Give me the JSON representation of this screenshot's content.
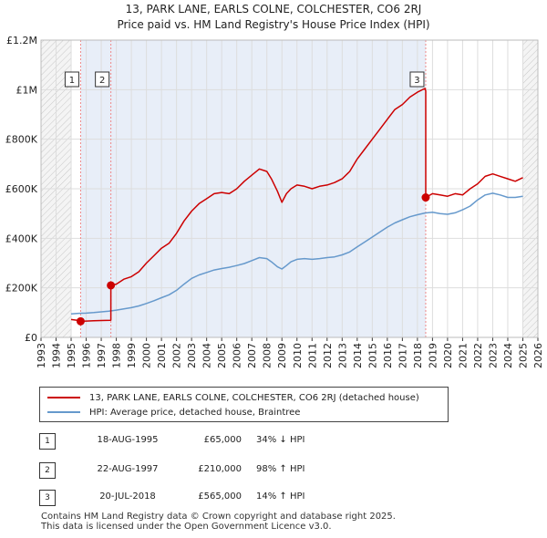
{
  "header": {
    "title_line1": "13, PARK LANE, EARLS COLNE, COLCHESTER, CO6 2RJ",
    "title_line2": "Price paid vs. HM Land Registry's House Price Index (HPI)"
  },
  "chart_data": {
    "type": "line",
    "title": "13, PARK LANE, EARLS COLNE, COLCHESTER, CO6 2RJ — Price paid vs. HM Land Registry's House Price Index (HPI)",
    "x_range": [
      1993,
      2026
    ],
    "y_range": [
      0,
      1200000
    ],
    "x_ticks": [
      1993,
      1994,
      1995,
      1996,
      1997,
      1998,
      1999,
      2000,
      2001,
      2002,
      2003,
      2004,
      2005,
      2006,
      2007,
      2008,
      2009,
      2010,
      2011,
      2012,
      2013,
      2014,
      2015,
      2016,
      2017,
      2018,
      2019,
      2020,
      2021,
      2022,
      2023,
      2024,
      2025,
      2026
    ],
    "y_ticks": [
      {
        "value": 0,
        "label": "£0"
      },
      {
        "value": 200000,
        "label": "£200K"
      },
      {
        "value": 400000,
        "label": "£400K"
      },
      {
        "value": 600000,
        "label": "£600K"
      },
      {
        "value": 800000,
        "label": "£800K"
      },
      {
        "value": 1000000,
        "label": "£1M"
      },
      {
        "value": 1200000,
        "label": "£1.2M"
      }
    ],
    "hatched_periods": [
      [
        1993,
        1995.0
      ],
      [
        2025.0,
        2026
      ]
    ],
    "sale_bands": [
      [
        1995.63,
        2018.55
      ]
    ],
    "series": [
      {
        "name": "13, PARK LANE, EARLS COLNE, COLCHESTER, CO6 2RJ (detached house)",
        "color": "#cc0000",
        "x": [
          1995.0,
          1995.63,
          1995.63,
          1996.0,
          1996.5,
          1997.0,
          1997.6,
          1997.64,
          1997.64,
          1998.0,
          1998.5,
          1999.0,
          1999.5,
          2000.0,
          2000.5,
          2001.0,
          2001.5,
          2002.0,
          2002.5,
          2003.0,
          2003.5,
          2004.0,
          2004.5,
          2005.0,
          2005.5,
          2006.0,
          2006.5,
          2007.0,
          2007.5,
          2008.0,
          2008.3,
          2008.7,
          2009.0,
          2009.3,
          2009.6,
          2010.0,
          2010.5,
          2011.0,
          2011.5,
          2012.0,
          2012.5,
          2013.0,
          2013.5,
          2014.0,
          2014.5,
          2015.0,
          2015.5,
          2016.0,
          2016.5,
          2017.0,
          2017.5,
          2018.0,
          2018.5,
          2018.55,
          2018.55,
          2019.0,
          2019.5,
          2020.0,
          2020.5,
          2021.0,
          2021.5,
          2022.0,
          2022.5,
          2023.0,
          2023.5,
          2024.0,
          2024.5,
          2025.0
        ],
        "values": [
          72000,
          67000,
          65000,
          66000,
          67000,
          68000,
          69000,
          69500,
          210000,
          215000,
          235000,
          245000,
          265000,
          300000,
          330000,
          360000,
          380000,
          420000,
          470000,
          510000,
          540000,
          560000,
          580000,
          585000,
          580000,
          600000,
          630000,
          655000,
          680000,
          670000,
          640000,
          590000,
          545000,
          580000,
          600000,
          615000,
          610000,
          600000,
          610000,
          615000,
          625000,
          640000,
          670000,
          720000,
          760000,
          800000,
          840000,
          880000,
          920000,
          940000,
          970000,
          990000,
          1005000,
          995000,
          565000,
          580000,
          575000,
          570000,
          580000,
          575000,
          600000,
          620000,
          650000,
          660000,
          650000,
          640000,
          630000,
          645000
        ]
      },
      {
        "name": "HPI: Average price, detached house, Braintree",
        "color": "#6699cc",
        "x": [
          1995.0,
          1995.5,
          1996.0,
          1996.5,
          1997.0,
          1997.5,
          1998.0,
          1998.5,
          1999.0,
          1999.5,
          2000.0,
          2000.5,
          2001.0,
          2001.5,
          2002.0,
          2002.5,
          2003.0,
          2003.5,
          2004.0,
          2004.5,
          2005.0,
          2005.5,
          2006.0,
          2006.5,
          2007.0,
          2007.5,
          2008.0,
          2008.3,
          2008.7,
          2009.0,
          2009.3,
          2009.6,
          2010.0,
          2010.5,
          2011.0,
          2011.5,
          2012.0,
          2012.5,
          2013.0,
          2013.5,
          2014.0,
          2014.5,
          2015.0,
          2015.5,
          2016.0,
          2016.5,
          2017.0,
          2017.5,
          2018.0,
          2018.5,
          2019.0,
          2019.5,
          2020.0,
          2020.5,
          2021.0,
          2021.5,
          2022.0,
          2022.5,
          2023.0,
          2023.5,
          2024.0,
          2024.5,
          2025.0
        ],
        "values": [
          95000,
          97000,
          98000,
          100000,
          103000,
          106000,
          110000,
          115000,
          120000,
          127000,
          137000,
          148000,
          160000,
          172000,
          190000,
          215000,
          238000,
          252000,
          262000,
          272000,
          278000,
          283000,
          290000,
          298000,
          310000,
          322000,
          318000,
          305000,
          285000,
          276000,
          290000,
          305000,
          315000,
          318000,
          315000,
          318000,
          322000,
          325000,
          333000,
          345000,
          365000,
          385000,
          405000,
          425000,
          445000,
          462000,
          475000,
          487000,
          495000,
          502000,
          505000,
          500000,
          497000,
          503000,
          515000,
          530000,
          555000,
          575000,
          582000,
          575000,
          565000,
          565000,
          570000
        ]
      }
    ],
    "markers": [
      {
        "label": "1",
        "x": 1995.63,
        "value": 65000
      },
      {
        "label": "2",
        "x": 1997.64,
        "value": 210000
      },
      {
        "label": "3",
        "x": 2018.55,
        "value": 565000
      }
    ]
  },
  "legend": {
    "property_label": "13, PARK LANE, EARLS COLNE, COLCHESTER, CO6 2RJ (detached house)",
    "hpi_label": "HPI: Average price, detached house, Braintree",
    "property_color": "#cc0000",
    "hpi_color": "#6699cc"
  },
  "transactions": [
    {
      "num": "1",
      "date": "18-AUG-1995",
      "price": "£65,000",
      "hpi": "34% ↓ HPI"
    },
    {
      "num": "2",
      "date": "22-AUG-1997",
      "price": "£210,000",
      "hpi": "98% ↑ HPI"
    },
    {
      "num": "3",
      "date": "20-JUL-2018",
      "price": "£565,000",
      "hpi": "14% ↑ HPI"
    }
  ],
  "footer": {
    "line1": "Contains HM Land Registry data © Crown copyright and database right 2025.",
    "line2": "This data is licensed under the Open Government Licence v3.0."
  }
}
